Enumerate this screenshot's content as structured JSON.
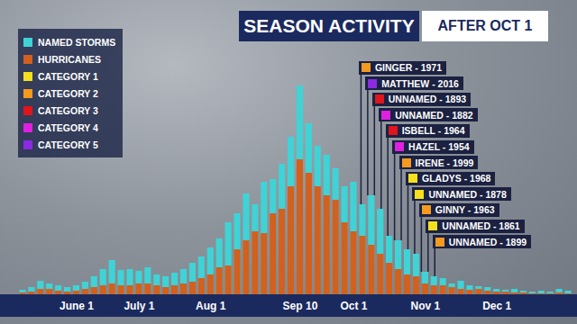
{
  "chart_data": {
    "type": "bar",
    "title": "SEASON ACTIVITY",
    "subtitle": "AFTER OCT 1",
    "categories": [
      null,
      null,
      null,
      null,
      null,
      null,
      "June 1",
      null,
      null,
      null,
      null,
      null,
      null,
      "July 1",
      null,
      null,
      null,
      null,
      null,
      null,
      null,
      "Aug 1",
      null,
      null,
      null,
      null,
      null,
      null,
      null,
      null,
      null,
      "Sep 10",
      null,
      null,
      null,
      null,
      null,
      "Oct 1",
      null,
      null,
      null,
      null,
      null,
      null,
      null,
      "Nov 1",
      null,
      null,
      null,
      null,
      null,
      null,
      null,
      "Dec 1",
      null,
      null,
      null,
      null,
      null,
      null,
      null,
      null
    ],
    "series": [
      {
        "name": "NAMED STORMS",
        "color": "#3fd3d6",
        "values": [
          5,
          8,
          15,
          12,
          10,
          8,
          10,
          14,
          20,
          28,
          38,
          27,
          28,
          26,
          30,
          22,
          20,
          24,
          28,
          35,
          42,
          52,
          62,
          80,
          90,
          112,
          100,
          125,
          128,
          145,
          175,
          232,
          190,
          165,
          155,
          140,
          120,
          125,
          100,
          110,
          95,
          65,
          60,
          50,
          45,
          25,
          20,
          18,
          12,
          15,
          10,
          9,
          8,
          6,
          5,
          6,
          4,
          3,
          4,
          3,
          6,
          4
        ]
      },
      {
        "name": "HURRICANES",
        "color": "#d2601e",
        "values": [
          2,
          3,
          6,
          6,
          4,
          3,
          4,
          6,
          8,
          10,
          12,
          10,
          10,
          12,
          12,
          10,
          8,
          10,
          12,
          14,
          18,
          22,
          30,
          32,
          50,
          60,
          70,
          68,
          90,
          95,
          120,
          150,
          135,
          120,
          110,
          105,
          80,
          70,
          65,
          55,
          45,
          35,
          28,
          22,
          20,
          12,
          10,
          10,
          8,
          6,
          5,
          6,
          4,
          3,
          3,
          2,
          2,
          1,
          1,
          1,
          2,
          1
        ]
      }
    ],
    "stacked": false,
    "ylim": [
      0,
      240
    ],
    "tick_labels": "x",
    "legend": "top-left",
    "storm_categories": [
      {
        "name": "CATEGORY 1",
        "color": "#f4e01c"
      },
      {
        "name": "CATEGORY 2",
        "color": "#f39a1f"
      },
      {
        "name": "CATEGORY 3",
        "color": "#e0141c"
      },
      {
        "name": "CATEGORY 4",
        "color": "#e020e0"
      },
      {
        "name": "CATEGORY 5",
        "color": "#8a2be2"
      }
    ],
    "annotations": [
      {
        "label": "GINGER - 1971",
        "category": "CATEGORY 2",
        "x": 37.8
      },
      {
        "label": "MATTHEW - 2016",
        "category": "CATEGORY 5",
        "x": 38.55
      },
      {
        "label": "UNNAMED - 1893",
        "category": "CATEGORY 3",
        "x": 39.3
      },
      {
        "label": "UNNAMED - 1882",
        "category": "CATEGORY 4",
        "x": 40.05
      },
      {
        "label": "ISBELL - 1964",
        "category": "CATEGORY 3",
        "x": 40.8
      },
      {
        "label": "HAZEL - 1954",
        "category": "CATEGORY 4",
        "x": 41.55
      },
      {
        "label": "IRENE - 1999",
        "category": "CATEGORY 2",
        "x": 42.3
      },
      {
        "label": "GLADYS - 1968",
        "category": "CATEGORY 1",
        "x": 43.05
      },
      {
        "label": "UNNAMED - 1878",
        "category": "CATEGORY 1",
        "x": 43.8
      },
      {
        "label": "GINNY - 1963",
        "category": "CATEGORY 2",
        "x": 44.55
      },
      {
        "label": "UNNAMED - 1861",
        "category": "CATEGORY 1",
        "x": 45.3
      },
      {
        "label": "UNNAMED - 1899",
        "category": "CATEGORY 2",
        "x": 46.05
      }
    ]
  }
}
